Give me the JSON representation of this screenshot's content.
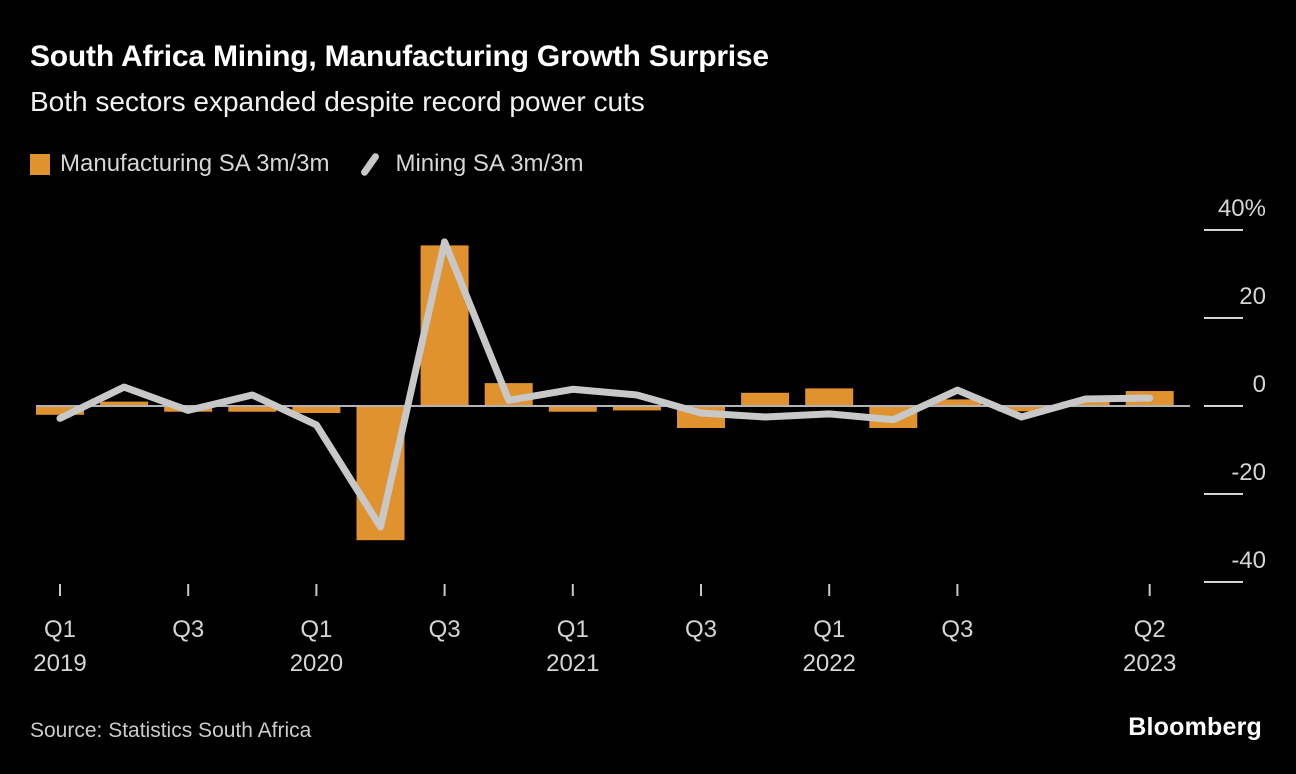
{
  "chart_data": {
    "type": "bar+line",
    "title": "South Africa Mining, Manufacturing Growth Surprise",
    "subtitle": "Both sectors expanded despite record power cuts",
    "categories": [
      "Q1 2019",
      "Q2 2019",
      "Q3 2019",
      "Q4 2019",
      "Q1 2020",
      "Q2 2020",
      "Q3 2020",
      "Q4 2020",
      "Q1 2021",
      "Q2 2021",
      "Q3 2021",
      "Q4 2021",
      "Q1 2022",
      "Q2 2022",
      "Q3 2022",
      "Q4 2022",
      "Q1 2023",
      "Q2 2023"
    ],
    "series": [
      {
        "name": "Manufacturing SA 3m/3m",
        "type": "bar",
        "color": "#e0922f",
        "values": [
          -2.0,
          1.0,
          -1.3,
          -1.3,
          -1.6,
          -30.5,
          36.5,
          5.2,
          -1.3,
          -1.0,
          -5.0,
          3.0,
          4.0,
          -5.0,
          1.5,
          -1.2,
          1.0,
          3.4
        ]
      },
      {
        "name": "Mining SA 3m/3m",
        "type": "line",
        "color": "#c8c8c8",
        "values": [
          -2.8,
          4.3,
          -1.0,
          2.5,
          -4.3,
          -27.5,
          37.3,
          1.3,
          3.8,
          2.5,
          -1.6,
          -2.5,
          -1.8,
          -3.1,
          3.6,
          -2.5,
          1.6,
          1.8
        ]
      }
    ],
    "xlabel": "",
    "ylabel": "",
    "unit": "%",
    "ylim": [
      -45,
      42
    ],
    "grid": false,
    "zero_line": true,
    "legend_position": "top-left",
    "y_ticks": [
      {
        "value": 40,
        "label": "40%"
      },
      {
        "value": 20,
        "label": "20"
      },
      {
        "value": 0,
        "label": "0"
      },
      {
        "value": -20,
        "label": "-20"
      },
      {
        "value": -40,
        "label": "-40"
      }
    ],
    "x_ticks": [
      {
        "index": 0,
        "label": "Q1",
        "year": "2019"
      },
      {
        "index": 2,
        "label": "Q3",
        "year": ""
      },
      {
        "index": 4,
        "label": "Q1",
        "year": "2020"
      },
      {
        "index": 6,
        "label": "Q3",
        "year": ""
      },
      {
        "index": 8,
        "label": "Q1",
        "year": "2021"
      },
      {
        "index": 10,
        "label": "Q3",
        "year": ""
      },
      {
        "index": 12,
        "label": "Q1",
        "year": "2022"
      },
      {
        "index": 14,
        "label": "Q3",
        "year": ""
      },
      {
        "index": 17,
        "label": "Q2",
        "year": "2023"
      }
    ]
  },
  "footer": {
    "source": "Source: Statistics South Africa",
    "brand": "Bloomberg"
  },
  "colors": {
    "background": "#000000",
    "bar": "#e0922f",
    "line": "#c8c8c8",
    "zero_axis": "#b3b3b3",
    "tick_text": "#d5d5d5",
    "tick_mark": "#c9c9c9"
  }
}
